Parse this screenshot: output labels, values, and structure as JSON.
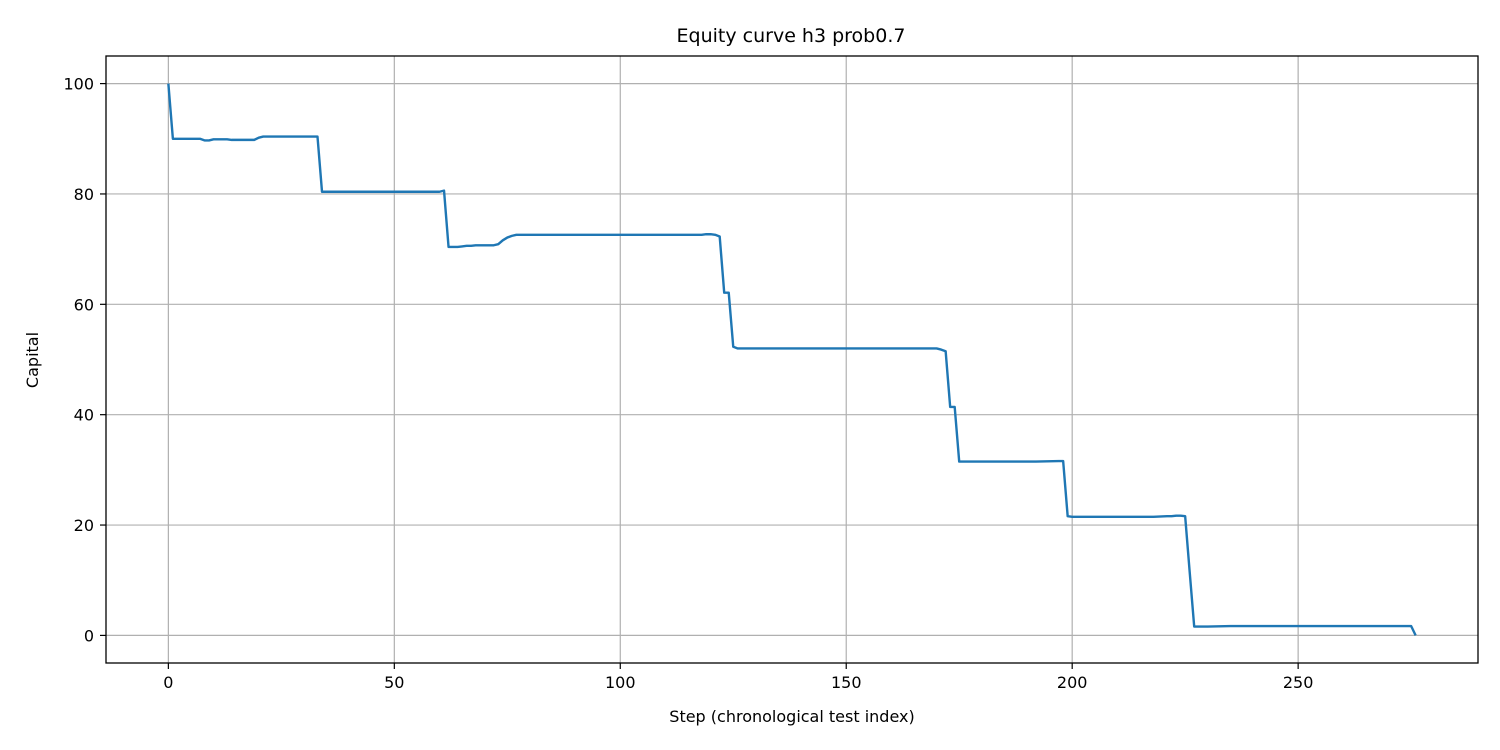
{
  "chart_data": {
    "type": "line",
    "title": "Equity curve h3 prob0.7",
    "xlabel": "Step (chronological test index)",
    "ylabel": "Capital",
    "xlim": [
      -13.8,
      289.8
    ],
    "ylim": [
      -5.0,
      105.0
    ],
    "xticks": [
      0,
      50,
      100,
      150,
      200,
      250
    ],
    "yticks": [
      0,
      20,
      40,
      60,
      80,
      100
    ],
    "grid": true,
    "line_color": "#1f77b4",
    "series": [
      {
        "name": "",
        "x": [
          0,
          1,
          2,
          7,
          8,
          9,
          10,
          13,
          14,
          19,
          20,
          21,
          22,
          32,
          33,
          34,
          35,
          59,
          60,
          61,
          62,
          63,
          64,
          65,
          66,
          67,
          68,
          69,
          70,
          71,
          72,
          73,
          74,
          75,
          76,
          77,
          78,
          100,
          118,
          119,
          120,
          121,
          122,
          123,
          124,
          125,
          126,
          150,
          163,
          170,
          171,
          172,
          173,
          174,
          175,
          176,
          192,
          197,
          198,
          199,
          200,
          210,
          218,
          221,
          222,
          223,
          224,
          225,
          226,
          227,
          230,
          235,
          250,
          275,
          276
        ],
        "y": [
          100.0,
          90.0,
          90.0,
          90.0,
          89.7,
          89.7,
          89.9,
          89.9,
          89.8,
          89.8,
          90.2,
          90.4,
          90.4,
          90.4,
          90.4,
          80.4,
          80.4,
          80.4,
          80.4,
          80.6,
          70.4,
          70.4,
          70.4,
          70.5,
          70.6,
          70.6,
          70.7,
          70.7,
          70.7,
          70.7,
          70.7,
          70.9,
          71.6,
          72.1,
          72.4,
          72.6,
          72.6,
          72.6,
          72.6,
          72.7,
          72.7,
          72.6,
          72.3,
          62.1,
          62.1,
          52.3,
          52.0,
          52.0,
          52.0,
          52.0,
          51.8,
          51.5,
          41.4,
          41.4,
          31.5,
          31.5,
          31.5,
          31.6,
          31.6,
          21.6,
          21.5,
          21.5,
          21.5,
          21.6,
          21.6,
          21.7,
          21.7,
          21.6,
          11.5,
          1.6,
          1.6,
          1.7,
          1.7,
          1.7,
          0.0
        ]
      }
    ]
  }
}
